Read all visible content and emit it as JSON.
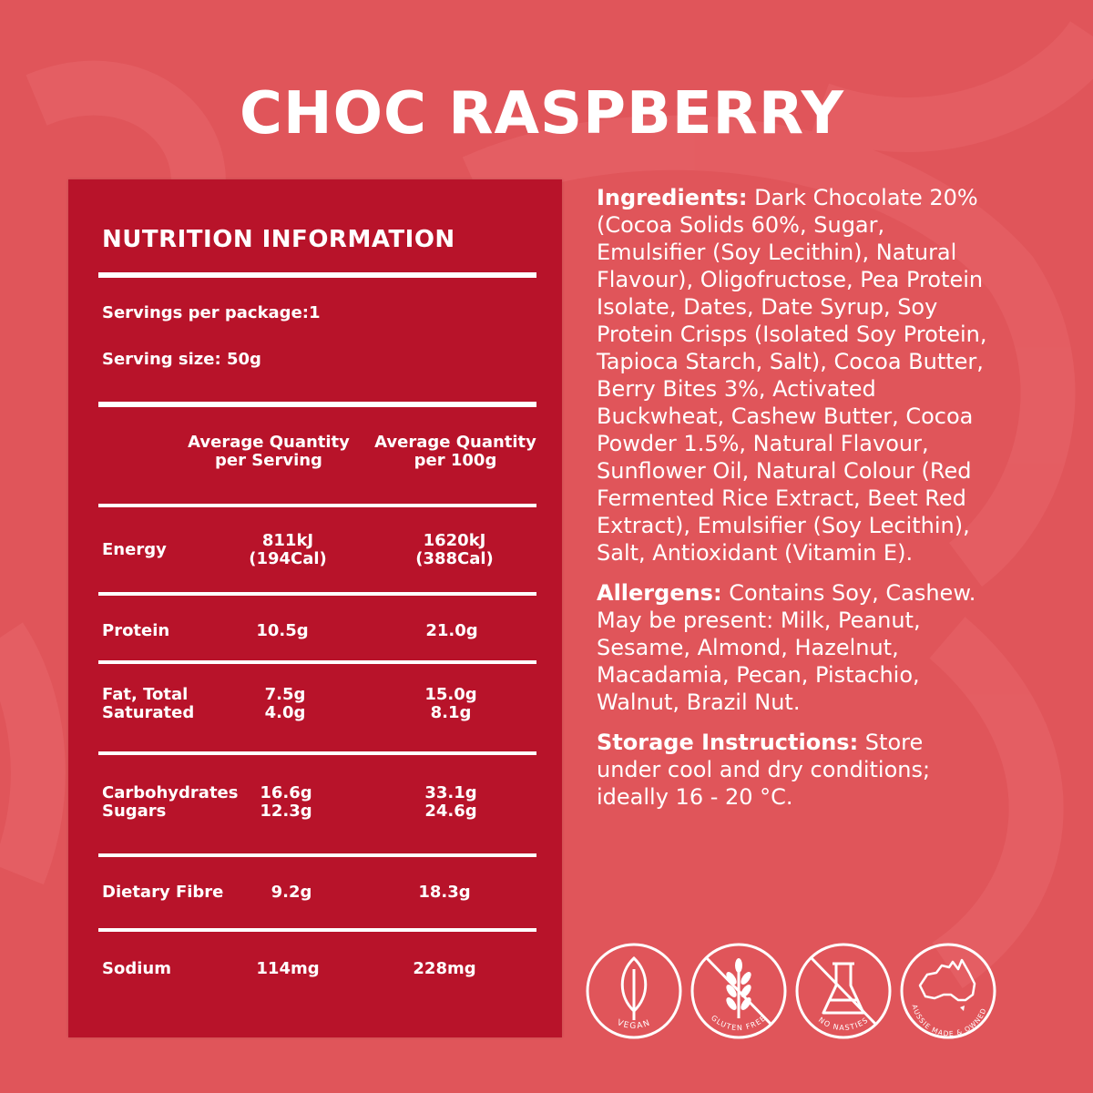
{
  "title": "CHOC RASPBERRY",
  "nutrition": {
    "heading": "NUTRITION INFORMATION",
    "servings": "Servings per package:1",
    "serving_size": "Serving size: 50g",
    "col_serving_1": "Average Quantity",
    "col_serving_2": "per Serving",
    "col_100g_1": "Average Quantity",
    "col_100g_2": "per 100g",
    "rows": [
      {
        "label": "Energy",
        "serving": [
          "811kJ",
          "(194Cal)"
        ],
        "per100": [
          "1620kJ",
          "(388Cal)"
        ]
      },
      {
        "label": "Protein",
        "serving": [
          "10.5g"
        ],
        "per100": [
          "21.0g"
        ]
      },
      {
        "label": "Fat, Total",
        "label2": "Saturated",
        "serving": [
          "7.5g",
          "4.0g"
        ],
        "per100": [
          "15.0g",
          "8.1g"
        ]
      },
      {
        "label": "Carbohydrates",
        "label2": "Sugars",
        "serving": [
          "16.6g",
          "12.3g"
        ],
        "per100": [
          "33.1g",
          "24.6g"
        ]
      },
      {
        "label": "Dietary Fibre",
        "serving": [
          "9.2g"
        ],
        "per100": [
          "18.3g"
        ]
      },
      {
        "label": "Sodium",
        "serving": [
          "114mg"
        ],
        "per100": [
          "228mg"
        ]
      }
    ]
  },
  "ingredients": {
    "label": "Ingredients:",
    "text": " Dark Chocolate 20% (Cocoa Solids 60%, Sugar, Emulsifier (Soy Lecithin), Natural Flavour), Oligofructose, Pea Protein Isolate, Dates, Date Syrup, Soy Protein Crisps (Isolated Soy Protein, Tapioca Starch, Salt), Cocoa Butter, Berry Bites 3%, Activated Buckwheat, Cashew Butter, Cocoa Powder 1.5%, Natural Flavour, Sunflower Oil, Natural Colour (Red Fermented Rice Extract, Beet Red Extract), Emulsifier (Soy Lecithin), Salt, Antioxidant (Vitamin E)."
  },
  "allergens": {
    "label": "Allergens:",
    "text": " Contains Soy, Cashew. May be present: Milk, Peanut, Sesame, Almond, Hazelnut, Macadamia, Pecan, Pistachio, Walnut, Brazil Nut."
  },
  "storage": {
    "label": "Storage Instructions:",
    "text": " Store under cool and dry conditions; ideally 16 - 20 °C."
  },
  "badges": [
    {
      "icon": "leaf-icon",
      "text": "VEGAN"
    },
    {
      "icon": "wheat-icon",
      "text": "GLUTEN FREE"
    },
    {
      "icon": "flask-icon",
      "text": "NO NASTIES"
    },
    {
      "icon": "australia-map-icon",
      "text": "AUSSIE MADE & OWNED"
    }
  ],
  "colors": {
    "background": "#e0555a",
    "panel": "#b8132a",
    "text": "#ffffff"
  }
}
